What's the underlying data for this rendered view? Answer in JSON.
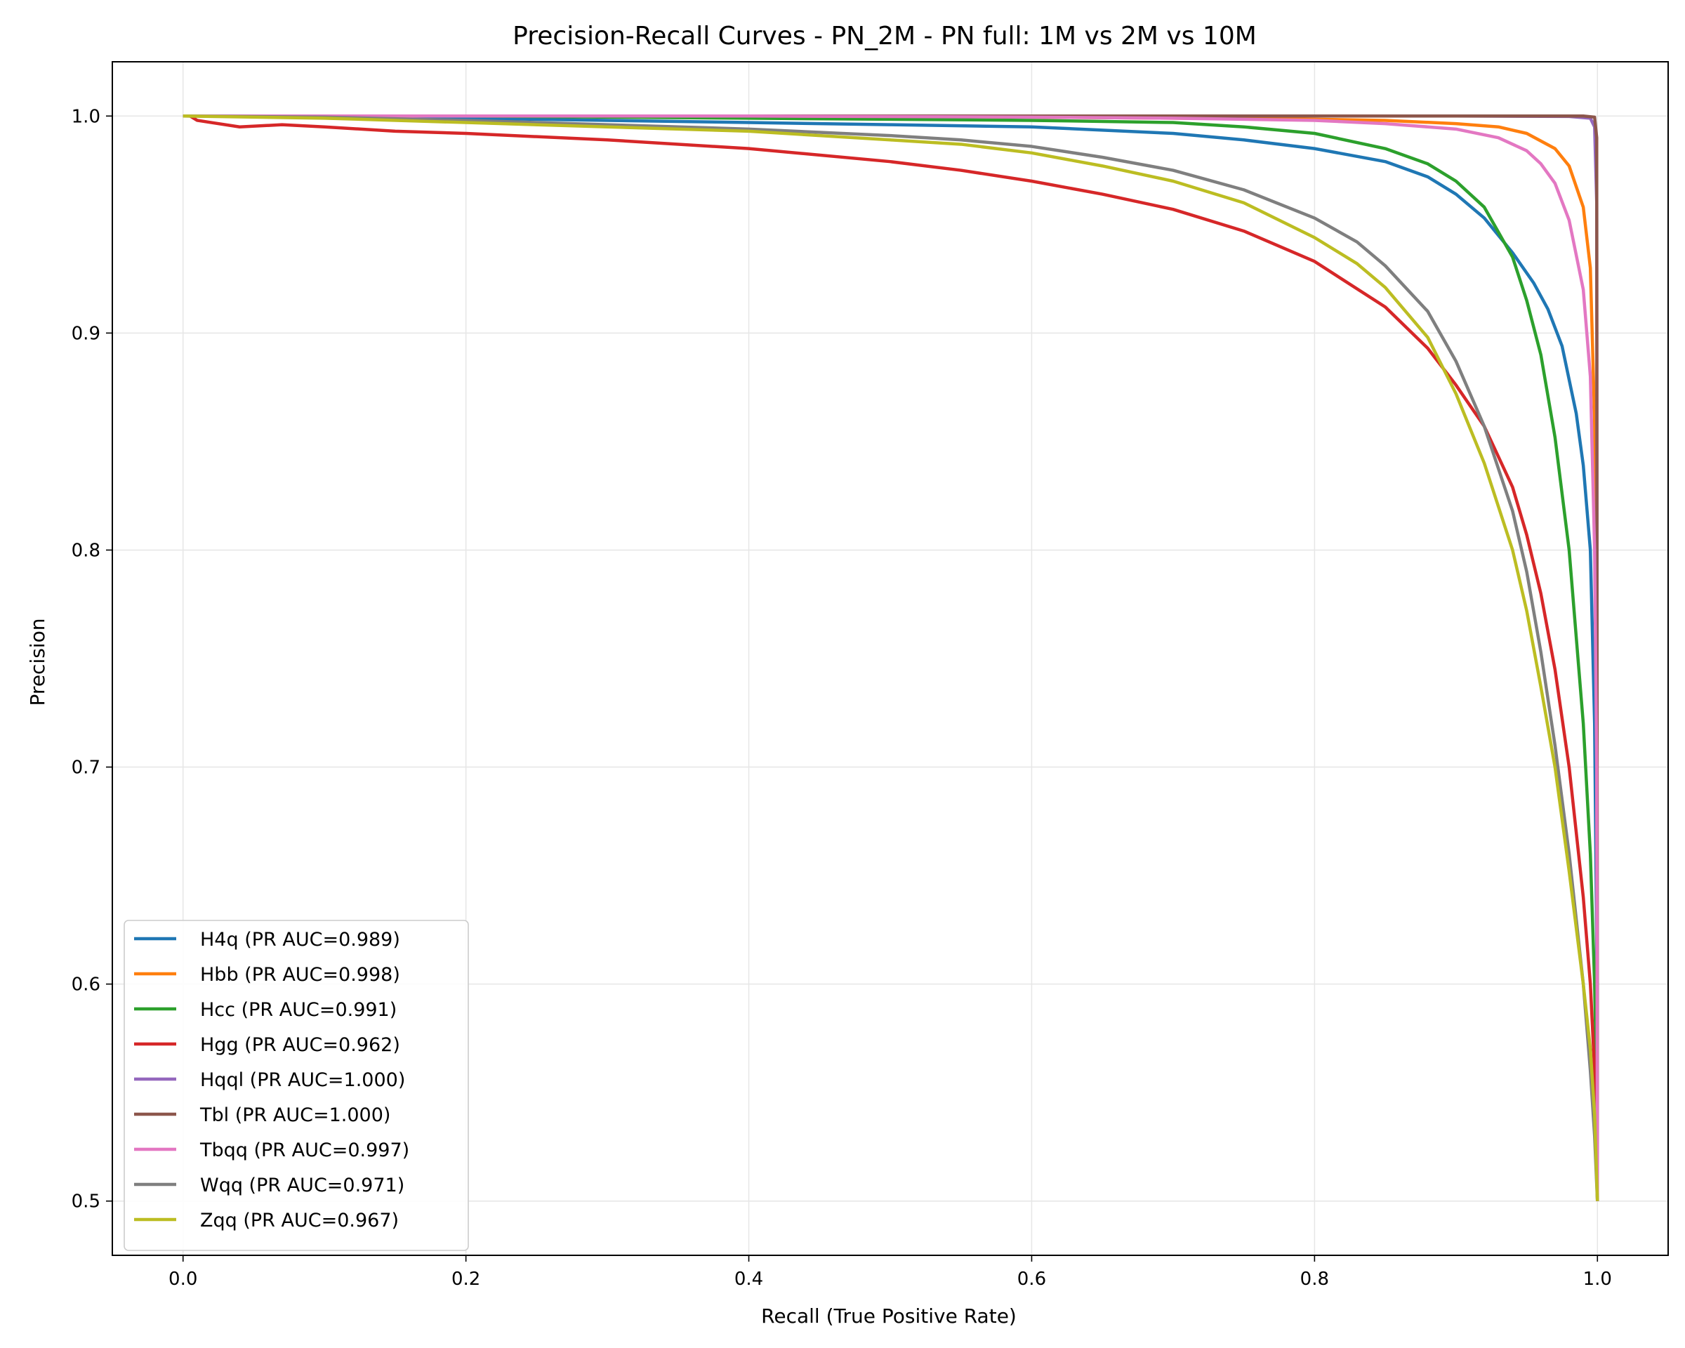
{
  "chart_data": {
    "type": "line",
    "title": "Precision-Recall Curves - PN_2M - PN full: 1M vs 2M vs 10M",
    "xlabel": "Recall (True Positive Rate)",
    "ylabel": "Precision",
    "xlim": [
      -0.05,
      1.05
    ],
    "ylim": [
      0.475,
      1.025
    ],
    "xticks": [
      0.0,
      0.2,
      0.4,
      0.6,
      0.8,
      1.0
    ],
    "xtick_labels": [
      "0.0",
      "0.2",
      "0.4",
      "0.6",
      "0.8",
      "1.0"
    ],
    "yticks": [
      0.5,
      0.6,
      0.7,
      0.8,
      0.9,
      1.0
    ],
    "ytick_labels": [
      "0.5",
      "0.6",
      "0.7",
      "0.8",
      "0.9",
      "1.0"
    ],
    "grid": true,
    "legend_position": "lower-left",
    "series": [
      {
        "name": "H4q (PR AUC=0.989)",
        "color": "#1f77b4",
        "x": [
          0,
          0.1,
          0.2,
          0.3,
          0.4,
          0.5,
          0.6,
          0.7,
          0.75,
          0.8,
          0.85,
          0.88,
          0.9,
          0.92,
          0.94,
          0.955,
          0.965,
          0.975,
          0.985,
          0.99,
          0.995,
          0.998,
          0.9995,
          1.0
        ],
        "y": [
          1.0,
          1.0,
          0.999,
          0.998,
          0.997,
          0.996,
          0.995,
          0.992,
          0.989,
          0.985,
          0.979,
          0.972,
          0.964,
          0.953,
          0.937,
          0.923,
          0.911,
          0.894,
          0.863,
          0.839,
          0.8,
          0.72,
          0.62,
          0.5
        ]
      },
      {
        "name": "Hbb (PR AUC=0.998)",
        "color": "#ff7f0e",
        "x": [
          0,
          0.2,
          0.4,
          0.6,
          0.7,
          0.8,
          0.85,
          0.9,
          0.93,
          0.95,
          0.97,
          0.98,
          0.99,
          0.995,
          0.998,
          0.9995,
          1.0
        ],
        "y": [
          1.0,
          1.0,
          1.0,
          0.9995,
          0.999,
          0.9985,
          0.998,
          0.9965,
          0.995,
          0.992,
          0.985,
          0.977,
          0.958,
          0.93,
          0.86,
          0.72,
          0.5
        ]
      },
      {
        "name": "Hcc (PR AUC=0.991)",
        "color": "#2ca02c",
        "x": [
          0,
          0.2,
          0.4,
          0.6,
          0.7,
          0.75,
          0.8,
          0.85,
          0.88,
          0.9,
          0.92,
          0.94,
          0.95,
          0.96,
          0.97,
          0.98,
          0.99,
          0.995,
          0.998,
          0.9995,
          1.0
        ],
        "y": [
          1.0,
          1.0,
          0.999,
          0.998,
          0.997,
          0.995,
          0.992,
          0.985,
          0.978,
          0.97,
          0.958,
          0.935,
          0.915,
          0.89,
          0.852,
          0.8,
          0.72,
          0.66,
          0.6,
          0.55,
          0.5
        ]
      },
      {
        "name": "Hgg (PR AUC=0.962)",
        "color": "#d62728",
        "x": [
          0,
          0.005,
          0.01,
          0.02,
          0.04,
          0.07,
          0.1,
          0.15,
          0.2,
          0.3,
          0.4,
          0.5,
          0.55,
          0.6,
          0.65,
          0.7,
          0.75,
          0.8,
          0.85,
          0.88,
          0.9,
          0.92,
          0.94,
          0.95,
          0.96,
          0.97,
          0.98,
          0.99,
          0.995,
          0.998,
          1.0
        ],
        "y": [
          1.0,
          1.0,
          0.998,
          0.997,
          0.995,
          0.996,
          0.995,
          0.993,
          0.992,
          0.989,
          0.985,
          0.979,
          0.975,
          0.97,
          0.964,
          0.957,
          0.947,
          0.933,
          0.912,
          0.893,
          0.876,
          0.857,
          0.829,
          0.807,
          0.78,
          0.745,
          0.7,
          0.64,
          0.6,
          0.56,
          0.5
        ]
      },
      {
        "name": "Hqql (PR AUC=1.000)",
        "color": "#9467bd",
        "x": [
          0,
          0.5,
          0.9,
          0.98,
          0.995,
          0.998,
          0.9995,
          1.0
        ],
        "y": [
          1.0,
          1.0,
          1.0,
          0.9998,
          0.999,
          0.995,
          0.96,
          0.5
        ]
      },
      {
        "name": "Tbl (PR AUC=1.000)",
        "color": "#8c564b",
        "x": [
          0,
          0.5,
          0.95,
          0.99,
          0.998,
          0.9995,
          1.0
        ],
        "y": [
          1.0,
          1.0,
          1.0,
          1.0,
          0.9995,
          0.99,
          0.5
        ]
      },
      {
        "name": "Tbqq (PR AUC=0.997)",
        "color": "#e377c2",
        "x": [
          0,
          0.2,
          0.4,
          0.6,
          0.7,
          0.8,
          0.85,
          0.9,
          0.93,
          0.95,
          0.96,
          0.97,
          0.98,
          0.99,
          0.995,
          0.998,
          0.9995,
          1.0
        ],
        "y": [
          1.0,
          1.0,
          1.0,
          0.9995,
          0.999,
          0.998,
          0.9965,
          0.994,
          0.99,
          0.984,
          0.978,
          0.969,
          0.952,
          0.92,
          0.88,
          0.8,
          0.7,
          0.5
        ]
      },
      {
        "name": "Wqq (PR AUC=0.971)",
        "color": "#7f7f7f",
        "x": [
          0,
          0.1,
          0.2,
          0.3,
          0.4,
          0.5,
          0.55,
          0.6,
          0.65,
          0.7,
          0.75,
          0.8,
          0.83,
          0.85,
          0.88,
          0.9,
          0.92,
          0.94,
          0.95,
          0.96,
          0.97,
          0.98,
          0.99,
          0.995,
          0.998,
          1.0
        ],
        "y": [
          1.0,
          0.9995,
          0.998,
          0.996,
          0.994,
          0.991,
          0.989,
          0.986,
          0.981,
          0.975,
          0.966,
          0.953,
          0.942,
          0.931,
          0.91,
          0.887,
          0.857,
          0.818,
          0.79,
          0.753,
          0.71,
          0.66,
          0.6,
          0.56,
          0.53,
          0.5
        ]
      },
      {
        "name": "Zqq (PR AUC=0.967)",
        "color": "#bcbd22",
        "x": [
          0,
          0.1,
          0.2,
          0.3,
          0.4,
          0.5,
          0.55,
          0.6,
          0.65,
          0.7,
          0.75,
          0.8,
          0.83,
          0.85,
          0.88,
          0.9,
          0.92,
          0.94,
          0.95,
          0.96,
          0.97,
          0.98,
          0.99,
          0.995,
          0.998,
          1.0
        ],
        "y": [
          1.0,
          0.999,
          0.997,
          0.995,
          0.993,
          0.989,
          0.987,
          0.983,
          0.977,
          0.97,
          0.96,
          0.944,
          0.932,
          0.921,
          0.898,
          0.872,
          0.84,
          0.8,
          0.772,
          0.737,
          0.7,
          0.652,
          0.6,
          0.57,
          0.54,
          0.5
        ]
      }
    ]
  }
}
